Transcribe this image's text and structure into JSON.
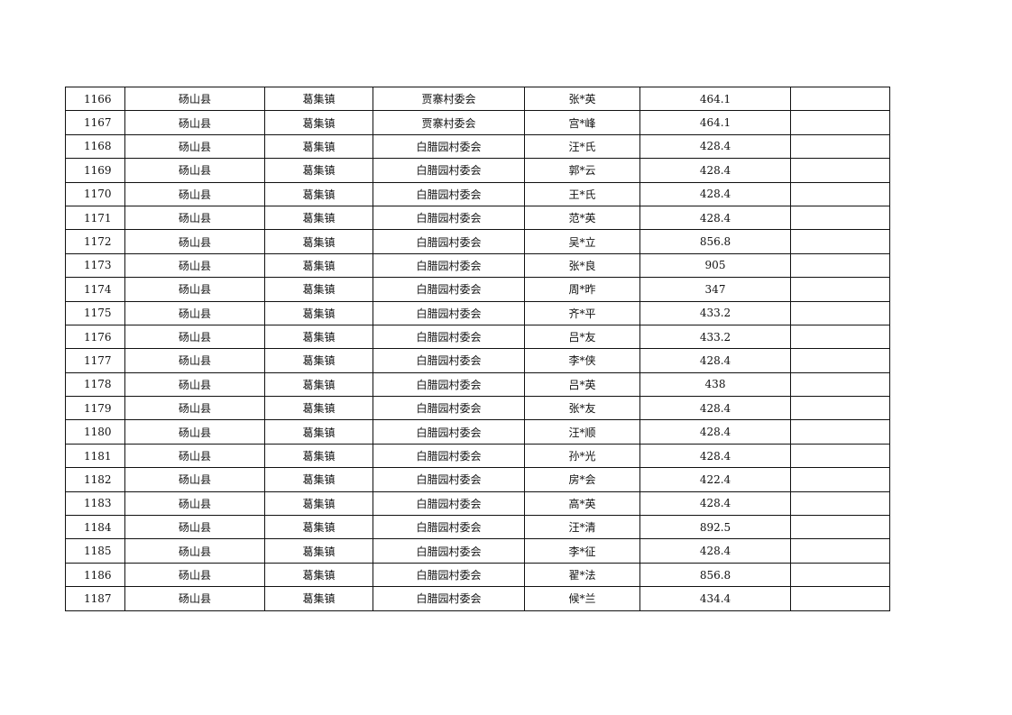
{
  "table": {
    "rows": [
      [
        "1166",
        "砀山县",
        "葛集镇",
        "贾寨村委会",
        "张*英",
        "464.1",
        ""
      ],
      [
        "1167",
        "砀山县",
        "葛集镇",
        "贾寨村委会",
        "宫*峰",
        "464.1",
        ""
      ],
      [
        "1168",
        "砀山县",
        "葛集镇",
        "白腊园村委会",
        "汪*氏",
        "428.4",
        ""
      ],
      [
        "1169",
        "砀山县",
        "葛集镇",
        "白腊园村委会",
        "郭*云",
        "428.4",
        ""
      ],
      [
        "1170",
        "砀山县",
        "葛集镇",
        "白腊园村委会",
        "王*氏",
        "428.4",
        ""
      ],
      [
        "1171",
        "砀山县",
        "葛集镇",
        "白腊园村委会",
        "范*英",
        "428.4",
        ""
      ],
      [
        "1172",
        "砀山县",
        "葛集镇",
        "白腊园村委会",
        "吴*立",
        "856.8",
        ""
      ],
      [
        "1173",
        "砀山县",
        "葛集镇",
        "白腊园村委会",
        "张*良",
        "905",
        ""
      ],
      [
        "1174",
        "砀山县",
        "葛集镇",
        "白腊园村委会",
        "周*昨",
        "347",
        ""
      ],
      [
        "1175",
        "砀山县",
        "葛集镇",
        "白腊园村委会",
        "齐*平",
        "433.2",
        ""
      ],
      [
        "1176",
        "砀山县",
        "葛集镇",
        "白腊园村委会",
        "吕*友",
        "433.2",
        ""
      ],
      [
        "1177",
        "砀山县",
        "葛集镇",
        "白腊园村委会",
        "李*侠",
        "428.4",
        ""
      ],
      [
        "1178",
        "砀山县",
        "葛集镇",
        "白腊园村委会",
        "吕*英",
        "438",
        ""
      ],
      [
        "1179",
        "砀山县",
        "葛集镇",
        "白腊园村委会",
        "张*友",
        "428.4",
        ""
      ],
      [
        "1180",
        "砀山县",
        "葛集镇",
        "白腊园村委会",
        "汪*顺",
        "428.4",
        ""
      ],
      [
        "1181",
        "砀山县",
        "葛集镇",
        "白腊园村委会",
        "孙*光",
        "428.4",
        ""
      ],
      [
        "1182",
        "砀山县",
        "葛集镇",
        "白腊园村委会",
        "房*会",
        "422.4",
        ""
      ],
      [
        "1183",
        "砀山县",
        "葛集镇",
        "白腊园村委会",
        "高*英",
        "428.4",
        ""
      ],
      [
        "1184",
        "砀山县",
        "葛集镇",
        "白腊园村委会",
        "汪*清",
        "892.5",
        ""
      ],
      [
        "1185",
        "砀山县",
        "葛集镇",
        "白腊园村委会",
        "李*征",
        "428.4",
        ""
      ],
      [
        "1186",
        "砀山县",
        "葛集镇",
        "白腊园村委会",
        "翟*法",
        "856.8",
        ""
      ],
      [
        "1187",
        "砀山县",
        "葛集镇",
        "白腊园村委会",
        "候*兰",
        "434.4",
        ""
      ]
    ]
  }
}
